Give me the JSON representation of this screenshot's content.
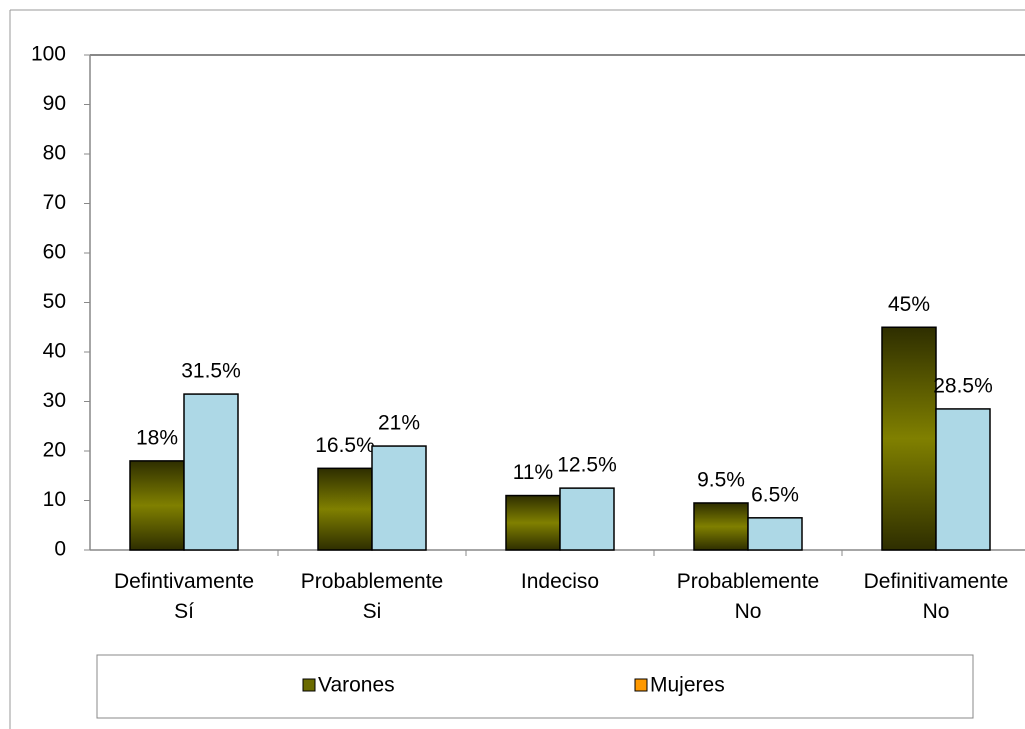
{
  "chart_data": {
    "type": "bar",
    "categories": [
      [
        "Defintivamente",
        "Sí"
      ],
      [
        "Probablemente",
        "Si"
      ],
      [
        "Indeciso"
      ],
      [
        "Probablemente",
        "No"
      ],
      [
        "Definitivamente",
        "No"
      ]
    ],
    "series": [
      {
        "name": "Varones",
        "color": "#808000",
        "legend_color": "#6b6b00",
        "values": [
          18,
          16.5,
          11,
          9.5,
          45
        ],
        "value_labels": [
          "18%",
          "16.5%",
          "11%",
          "9.5%",
          "45%"
        ]
      },
      {
        "name": "Mujeres",
        "color": "#add8e6",
        "legend_color": "#ff9900",
        "values": [
          31.5,
          21,
          12.5,
          6.5,
          28.5
        ],
        "value_labels": [
          "31.5%",
          "21%",
          "12.5%",
          "6.5%",
          "28.5%"
        ]
      }
    ],
    "ylim": [
      0,
      100
    ],
    "yticks": [
      0,
      10,
      20,
      30,
      40,
      50,
      60,
      70,
      80,
      90,
      100
    ],
    "grid": false,
    "legend": "bottom"
  }
}
